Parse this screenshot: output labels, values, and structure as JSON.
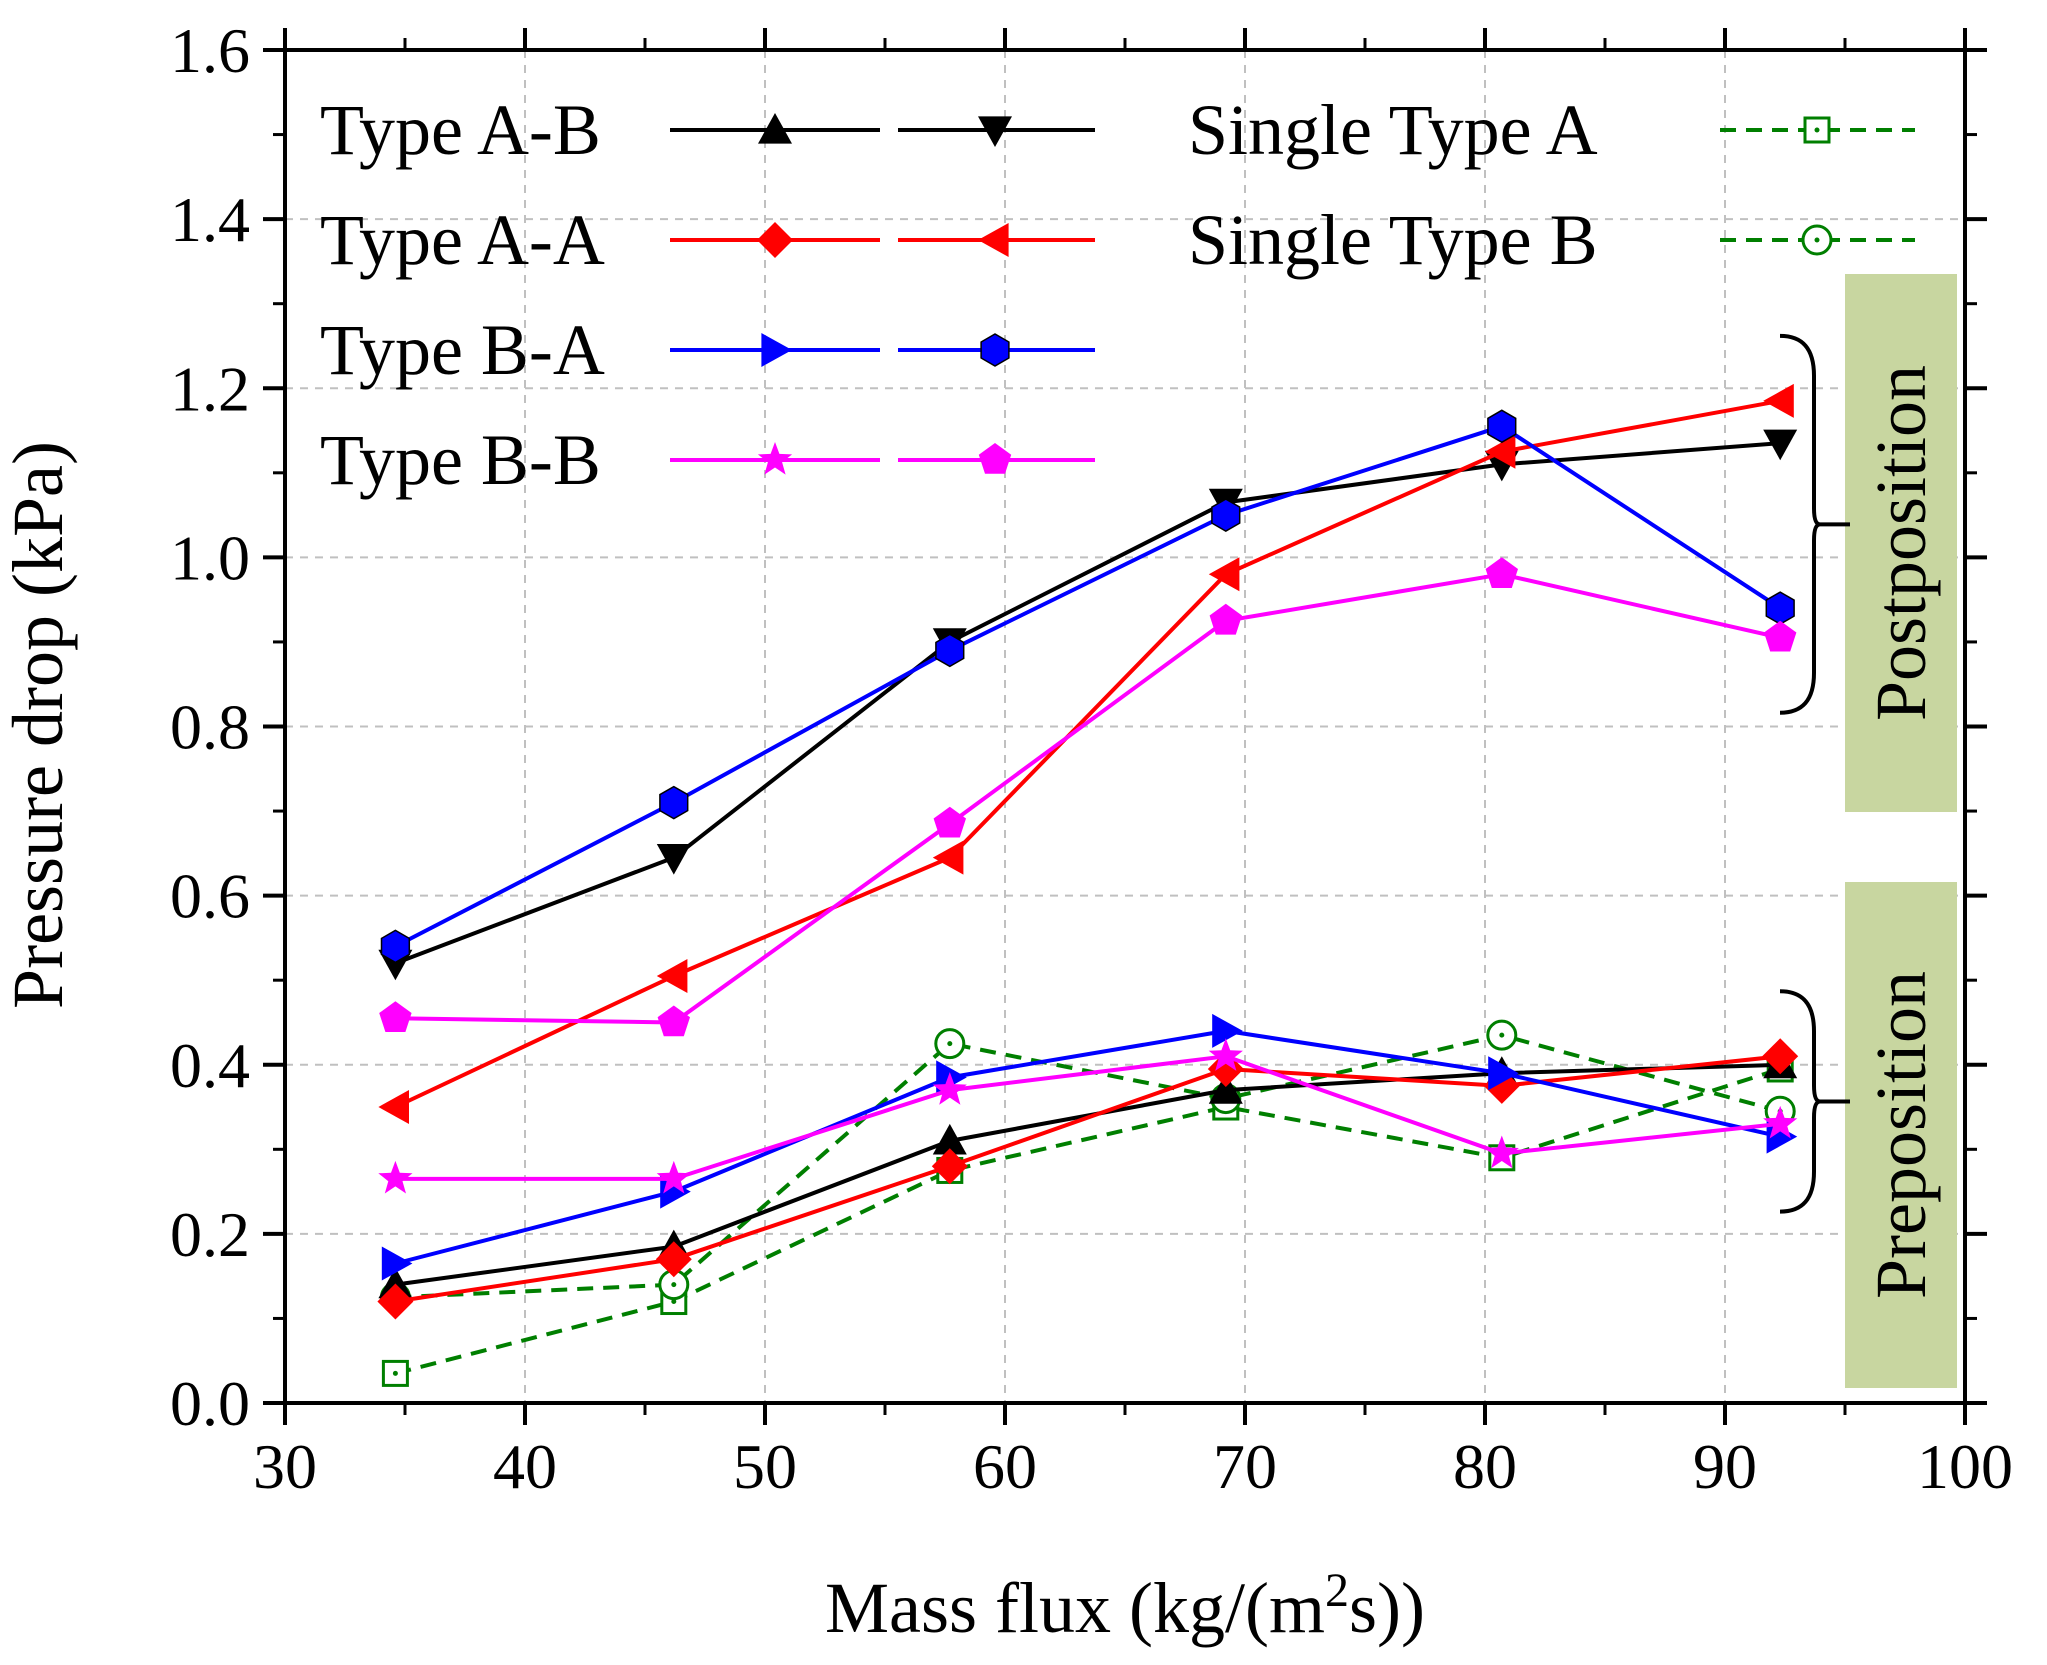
{
  "chart_data": {
    "type": "line",
    "title": "",
    "xlabel": "Mass flux (kg/(m",
    "xlabel_sup": "2",
    "xlabel_tail": "s))",
    "ylabel": "Pressure drop (kPa)",
    "xlim": [
      30,
      100
    ],
    "ylim": [
      0.0,
      1.6
    ],
    "xticks": [
      "30",
      "40",
      "50",
      "60",
      "70",
      "80",
      "90",
      "100"
    ],
    "yticks": [
      "0.0",
      "0.2",
      "0.4",
      "0.6",
      "0.8",
      "1.0",
      "1.2",
      "1.4",
      "1.6"
    ],
    "grid": true,
    "x": [
      34.6,
      46.2,
      57.7,
      69.2,
      80.7,
      92.3
    ],
    "series": [
      {
        "name": "Type A-B (Preposition)",
        "group": "pre",
        "color": "#000000",
        "marker": "triangle-up",
        "dashed": false,
        "values": [
          0.14,
          0.185,
          0.31,
          0.37,
          0.39,
          0.4
        ]
      },
      {
        "name": "Type A-B (Postposition)",
        "group": "post",
        "color": "#000000",
        "marker": "triangle-down",
        "dashed": false,
        "values": [
          0.52,
          0.645,
          0.9,
          1.065,
          1.11,
          1.135
        ]
      },
      {
        "name": "Type A-A (Preposition)",
        "group": "pre",
        "color": "#ff0000",
        "marker": "diamond",
        "dashed": false,
        "values": [
          0.12,
          0.17,
          0.28,
          0.395,
          0.375,
          0.41
        ]
      },
      {
        "name": "Type A-A (Postposition)",
        "group": "post",
        "color": "#ff0000",
        "marker": "triangle-left",
        "dashed": false,
        "values": [
          0.35,
          0.505,
          0.645,
          0.98,
          1.125,
          1.185
        ]
      },
      {
        "name": "Type B-A (Preposition)",
        "group": "pre",
        "color": "#0000ff",
        "marker": "triangle-right",
        "dashed": false,
        "values": [
          0.165,
          0.25,
          0.385,
          0.44,
          0.39,
          0.315
        ]
      },
      {
        "name": "Type B-A (Postposition)",
        "group": "post",
        "color": "#0000ff",
        "marker": "hexagon",
        "dashed": false,
        "values": [
          0.54,
          0.71,
          0.89,
          1.05,
          1.155,
          0.94
        ]
      },
      {
        "name": "Type B-B (Preposition)",
        "group": "pre",
        "color": "#ff00ff",
        "marker": "star",
        "dashed": false,
        "values": [
          0.265,
          0.265,
          0.37,
          0.41,
          0.295,
          0.33
        ]
      },
      {
        "name": "Type B-B (Postposition)",
        "group": "post",
        "color": "#ff00ff",
        "marker": "pentagon",
        "dashed": false,
        "values": [
          0.455,
          0.45,
          0.685,
          0.925,
          0.98,
          0.905
        ]
      },
      {
        "name": "Single Type A",
        "group": "single",
        "color": "#007f00",
        "marker": "square-dot",
        "dashed": true,
        "values": [
          0.035,
          0.12,
          0.275,
          0.35,
          0.29,
          0.395
        ]
      },
      {
        "name": "Single Type B",
        "group": "single",
        "color": "#007f00",
        "marker": "circle-dot",
        "dashed": true,
        "values": [
          0.125,
          0.14,
          0.425,
          0.36,
          0.435,
          0.345
        ]
      }
    ],
    "legend": {
      "placement": "top",
      "entries": [
        {
          "label": "Type A-B",
          "color": "#000000",
          "markers": [
            "triangle-up",
            "triangle-down"
          ],
          "dashed": false
        },
        {
          "label": "Type A-A",
          "color": "#ff0000",
          "markers": [
            "diamond",
            "triangle-left"
          ],
          "dashed": false
        },
        {
          "label": "Type B-A",
          "color": "#0000ff",
          "markers": [
            "triangle-right",
            "hexagon"
          ],
          "dashed": false
        },
        {
          "label": "Type B-B",
          "color": "#ff00ff",
          "markers": [
            "star",
            "pentagon"
          ],
          "dashed": false
        },
        {
          "label": "Single Type A",
          "color": "#007f00",
          "markers": [
            "square-dot"
          ],
          "dashed": true
        },
        {
          "label": "Single Type B",
          "color": "#007f00",
          "markers": [
            "circle-dot"
          ],
          "dashed": true
        }
      ]
    },
    "annotations": [
      {
        "text": "Postposition",
        "group": "post",
        "box_color": "#c8d6a0"
      },
      {
        "text": "Preposition",
        "group": "pre",
        "box_color": "#c8d6a0"
      }
    ]
  }
}
